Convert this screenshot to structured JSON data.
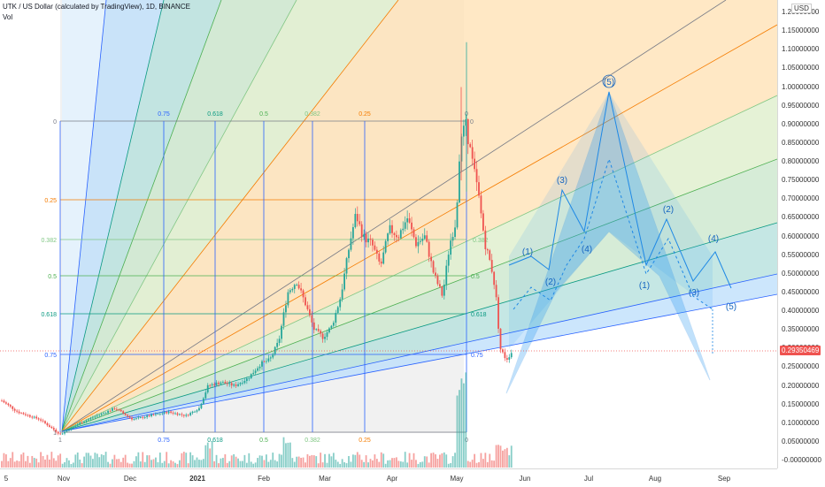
{
  "header": {
    "title": "UTK / US Dollar (calculated by TradingView), 1D, BINANCE",
    "vol_label": "Vol"
  },
  "price_axis": {
    "currency": "USD",
    "labels": [
      "1.20000000",
      "1.15000000",
      "1.10000000",
      "1.05000000",
      "1.00000000",
      "0.95000000",
      "0.90000000",
      "0.85000000",
      "0.80000000",
      "0.75000000",
      "0.70000000",
      "0.65000000",
      "0.60000000",
      "0.55000000",
      "0.50000000",
      "0.45000000",
      "0.40000000",
      "0.35000000",
      "0.30000000",
      "0.25000000",
      "0.20000000",
      "0.15000000",
      "0.10000000",
      "0.05000000",
      "-0.00000000"
    ],
    "current_price": "0.29350469",
    "current_price_value": 0.2935
  },
  "time_axis": {
    "labels": [
      {
        "text": "5",
        "bold": false
      },
      {
        "text": "Nov",
        "bold": false
      },
      {
        "text": "Dec",
        "bold": false
      },
      {
        "text": "2021",
        "bold": true
      },
      {
        "text": "Feb",
        "bold": false
      },
      {
        "text": "Mar",
        "bold": false
      },
      {
        "text": "Apr",
        "bold": false
      },
      {
        "text": "May",
        "bold": false
      },
      {
        "text": "Jun",
        "bold": false
      },
      {
        "text": "Jul",
        "bold": false
      },
      {
        "text": "Aug",
        "bold": false
      },
      {
        "text": "Sep",
        "bold": false
      }
    ]
  },
  "fib_grid": {
    "left_labels": [
      "0",
      "0.25",
      "0.382",
      "0.5",
      "0.618",
      "0.75",
      "1"
    ],
    "top_labels": [
      "0.75",
      "0.618",
      "0.5",
      "0.382",
      "0.25",
      "0"
    ],
    "bottom_labels": [
      "0.75",
      "0.618",
      "0.5",
      "0.382",
      "0.25",
      "0",
      "1"
    ],
    "mid_labels": [
      "0",
      "0.382",
      "0.5",
      "0.618",
      "0.75"
    ],
    "colors": {
      "0": "#787b86",
      "0.25": "#f57c00",
      "0.382": "#81c784",
      "0.5": "#4caf50",
      "0.618": "#089981",
      "0.75": "#2962ff",
      "1": "#787b86"
    }
  },
  "elliott_labels": [
    "(1)",
    "(2)",
    "(3)",
    "(4)",
    "(5)",
    "(1)",
    "(2)",
    "(3)",
    "(4)",
    "(5)"
  ],
  "colors": {
    "up": "#26a69a",
    "down": "#ef5350",
    "pattern_fill": "#2196f3",
    "pattern_stroke": "#1e88e5"
  },
  "chart_data": {
    "type": "candlestick",
    "ylim": [
      -0.02,
      1.22
    ],
    "approx_closes": [
      {
        "date": "2020-11-01",
        "close": 0.08
      },
      {
        "date": "2020-12-01",
        "close": 0.12
      },
      {
        "date": "2021-01-01",
        "close": 0.18
      },
      {
        "date": "2021-02-01",
        "close": 0.35
      },
      {
        "date": "2021-03-01",
        "close": 0.45
      },
      {
        "date": "2021-04-01",
        "close": 0.62
      },
      {
        "date": "2021-05-01",
        "close": 0.75
      },
      {
        "date": "2021-05-10",
        "close": 0.9
      },
      {
        "date": "2021-05-20",
        "close": 0.29
      }
    ]
  }
}
